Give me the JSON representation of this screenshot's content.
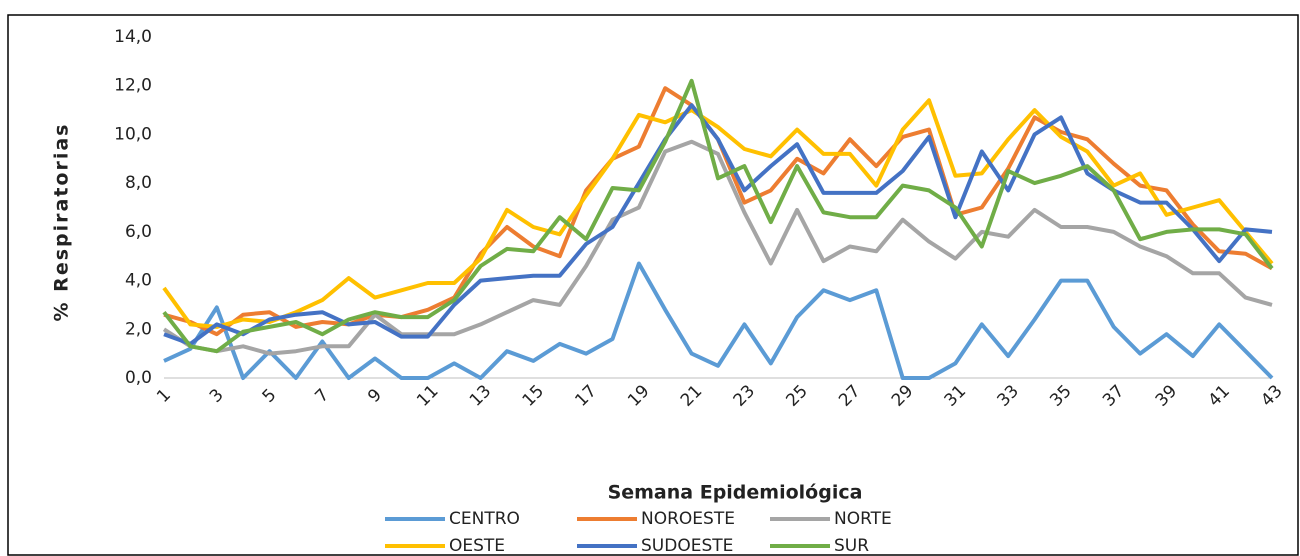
{
  "chart_data": {
    "type": "line",
    "x_label": "Semana Epidemiológica",
    "y_label": "% Respiratorias",
    "categories": [
      "1",
      null,
      "3",
      null,
      "5",
      null,
      "7",
      null,
      "9",
      null,
      "11",
      null,
      "13",
      null,
      "15",
      null,
      "17",
      null,
      "19",
      null,
      "21",
      null,
      "23",
      null,
      "25",
      null,
      "27",
      null,
      "29",
      null,
      "31",
      null,
      "33",
      null,
      "35",
      null,
      "37",
      null,
      "39",
      null,
      "41",
      null,
      "43"
    ],
    "ylim": [
      0,
      14
    ],
    "yticks": [
      {
        "value": 0,
        "label": "0,0"
      },
      {
        "value": 2,
        "label": "2,0"
      },
      {
        "value": 4,
        "label": "4,0"
      },
      {
        "value": 6,
        "label": "6,0"
      },
      {
        "value": 8,
        "label": "8,0"
      },
      {
        "value": 10,
        "label": "10,0"
      },
      {
        "value": 12,
        "label": "12,0"
      },
      {
        "value": 14,
        "label": "14,0"
      }
    ],
    "grid": false,
    "legend": "bottom",
    "series": [
      {
        "name": "CENTRO",
        "color": "#5b9bd5",
        "values": [
          0.7,
          1.2,
          2.9,
          0,
          1.1,
          0,
          1.5,
          0,
          0.8,
          0,
          0,
          0.6,
          0,
          1.1,
          0.7,
          1.4,
          1.0,
          1.6,
          4.7,
          2.8,
          1.0,
          0.5,
          2.2,
          0.6,
          2.5,
          3.6,
          3.2,
          3.6,
          0,
          0,
          0.6,
          2.2,
          0.9,
          2.4,
          4.0,
          4.0,
          2.1,
          1.0,
          1.8,
          0.9,
          2.2,
          1.1,
          0
        ]
      },
      {
        "name": "NOROESTE",
        "color": "#ed7d31",
        "values": [
          2.6,
          2.3,
          1.8,
          2.6,
          2.7,
          2.1,
          2.3,
          2.2,
          2.6,
          2.5,
          2.8,
          3.3,
          5.1,
          6.2,
          5.4,
          5.0,
          7.7,
          9.0,
          9.5,
          11.9,
          11.2,
          9.8,
          7.2,
          7.7,
          9.0,
          8.4,
          9.8,
          8.7,
          9.9,
          10.2,
          6.7,
          7.0,
          8.6,
          10.7,
          10.1,
          9.8,
          8.8,
          7.9,
          7.7,
          6.3,
          5.2,
          5.1,
          4.5
        ]
      },
      {
        "name": "NORTE",
        "color": "#a5a5a5",
        "values": [
          2.0,
          1.3,
          1.1,
          1.3,
          1.0,
          1.1,
          1.3,
          1.3,
          2.6,
          1.8,
          1.8,
          1.8,
          2.2,
          2.7,
          3.2,
          3.0,
          4.6,
          6.5,
          7.0,
          9.3,
          9.7,
          9.2,
          6.8,
          4.7,
          6.9,
          4.8,
          5.4,
          5.2,
          6.5,
          5.6,
          4.9,
          6.0,
          5.8,
          6.9,
          6.2,
          6.2,
          6.0,
          5.4,
          5.0,
          4.3,
          4.3,
          3.3,
          3.0
        ]
      },
      {
        "name": "OESTE",
        "color": "#ffc000",
        "values": [
          3.7,
          2.2,
          2.1,
          2.4,
          2.3,
          2.7,
          3.2,
          4.1,
          3.3,
          3.6,
          3.9,
          3.9,
          4.9,
          6.9,
          6.2,
          5.9,
          7.5,
          9.0,
          10.8,
          10.5,
          11.0,
          10.3,
          9.4,
          9.1,
          10.2,
          9.2,
          9.2,
          7.9,
          10.2,
          11.4,
          8.3,
          8.4,
          9.8,
          11.0,
          9.9,
          9.3,
          7.9,
          8.4,
          6.7,
          7.0,
          7.3,
          6.0,
          4.7
        ]
      },
      {
        "name": "SUDOESTE",
        "color": "#4472c4",
        "values": [
          1.8,
          1.4,
          2.2,
          1.8,
          2.4,
          2.6,
          2.7,
          2.2,
          2.3,
          1.7,
          1.7,
          3.0,
          4.0,
          4.1,
          4.2,
          4.2,
          5.5,
          6.2,
          8.0,
          9.8,
          11.2,
          9.8,
          7.7,
          8.7,
          9.6,
          7.6,
          7.6,
          7.6,
          8.5,
          9.9,
          6.6,
          9.3,
          7.7,
          10.0,
          10.7,
          8.4,
          7.7,
          7.2,
          7.2,
          6.1,
          4.8,
          6.1,
          6.0
        ]
      },
      {
        "name": "SUR",
        "color": "#70ad47",
        "values": [
          2.7,
          1.3,
          1.1,
          1.9,
          2.1,
          2.3,
          1.8,
          2.4,
          2.7,
          2.5,
          2.5,
          3.2,
          4.6,
          5.3,
          5.2,
          6.6,
          5.7,
          7.8,
          7.7,
          9.7,
          12.2,
          8.2,
          8.7,
          6.4,
          8.7,
          6.8,
          6.6,
          6.6,
          7.9,
          7.7,
          7.0,
          5.4,
          8.5,
          8.0,
          8.3,
          8.7,
          7.7,
          5.7,
          6.0,
          6.1,
          6.1,
          5.9,
          4.5
        ]
      }
    ]
  }
}
